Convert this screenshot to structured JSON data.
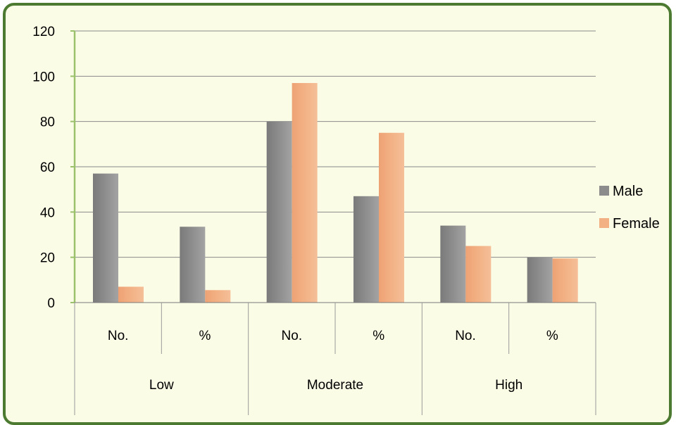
{
  "chart_data": {
    "type": "bar",
    "categories": [
      "No.",
      "%",
      "No.",
      "%",
      "No.",
      "%"
    ],
    "groups": [
      {
        "label": "Low",
        "span": 2
      },
      {
        "label": "Moderate",
        "span": 2
      },
      {
        "label": "High",
        "span": 2
      }
    ],
    "series": [
      {
        "name": "Male",
        "values": [
          57,
          33.5,
          80,
          47,
          34,
          20
        ]
      },
      {
        "name": "Female",
        "values": [
          7,
          5.5,
          97,
          75,
          25,
          19.5
        ]
      }
    ],
    "ylim": [
      0,
      120
    ],
    "yticks": [
      0,
      20,
      40,
      60,
      80,
      100,
      120
    ],
    "grid": true,
    "legend_position": "right",
    "colors": {
      "male": "#8c8c8c",
      "female": "#f2b083",
      "frame_border": "#4c7a30",
      "background": "#fbfce6",
      "y_axis": "#9bc16d",
      "gridline": "#8a8a8a"
    }
  }
}
